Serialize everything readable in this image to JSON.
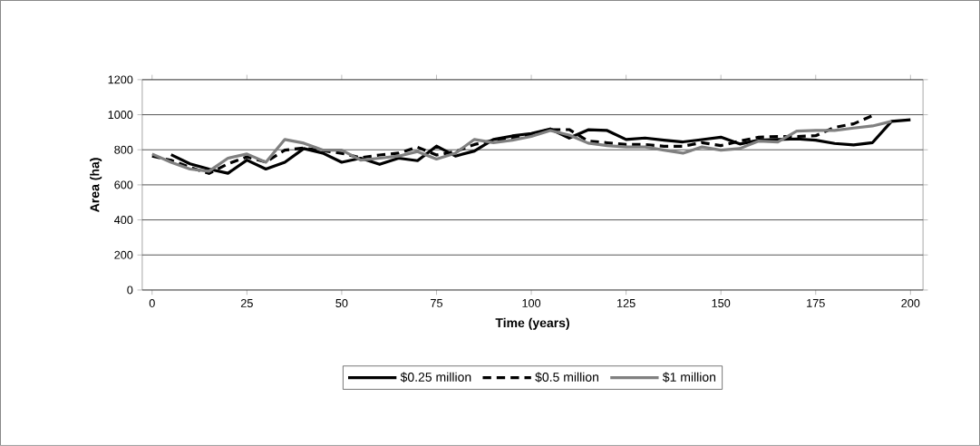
{
  "chart_data": {
    "type": "line",
    "xlabel": "Time (years)",
    "ylabel": "Area (ha)",
    "xlim": [
      -2.6,
      203.3
    ],
    "ylim": [
      0,
      1200
    ],
    "xticks": [
      0,
      25,
      50,
      75,
      100,
      125,
      150,
      175,
      200
    ],
    "yticks": [
      0,
      200,
      400,
      600,
      800,
      1000,
      1200
    ],
    "grid": "y",
    "legend": "bottom",
    "marker": "none",
    "series": [
      {
        "name": "$0.25 million",
        "color": "#000000",
        "line_style": "solid",
        "x": [
          5,
          10,
          15,
          20,
          25,
          30,
          35,
          40,
          45,
          50,
          55,
          60,
          65,
          70,
          75,
          80,
          85,
          90,
          95,
          100,
          105,
          110,
          115,
          120,
          125,
          130,
          135,
          140,
          145,
          150,
          155,
          160,
          165,
          170,
          175,
          180,
          185,
          190,
          195,
          200
        ],
        "values": [
          772,
          720,
          690,
          666,
          741,
          690,
          729,
          807,
          781,
          729,
          752,
          717,
          752,
          738,
          821,
          764,
          793,
          859,
          879,
          893,
          919,
          867,
          914,
          910,
          859,
          867,
          855,
          845,
          858,
          872,
          833,
          855,
          859,
          862,
          855,
          836,
          828,
          841,
          962,
          971
        ]
      },
      {
        "name": "$0.5 million",
        "color": "#000000",
        "line_style": "dashed",
        "x": [
          0,
          5,
          10,
          15,
          20,
          25,
          30,
          35,
          40,
          45,
          50,
          55,
          60,
          65,
          70,
          75,
          80,
          85,
          90,
          95,
          100,
          105,
          110,
          115,
          120,
          125,
          130,
          135,
          140,
          145,
          150,
          155,
          160,
          165,
          170,
          175,
          180,
          185,
          190
        ],
        "values": [
          764,
          740,
          700,
          665,
          720,
          760,
          730,
          798,
          810,
          795,
          780,
          755,
          770,
          781,
          815,
          770,
          790,
          830,
          855,
          865,
          890,
          915,
          915,
          850,
          840,
          830,
          830,
          820,
          820,
          841,
          824,
          850,
          872,
          876,
          876,
          880,
          928,
          948,
          995
        ]
      },
      {
        "name": "$1 million",
        "color": "#808080",
        "line_style": "solid",
        "x": [
          0,
          5,
          10,
          15,
          20,
          25,
          30,
          35,
          40,
          45,
          50,
          55,
          60,
          65,
          70,
          75,
          80,
          85,
          90,
          95,
          100,
          105,
          110,
          115,
          120,
          125,
          130,
          135,
          140,
          145,
          150,
          155,
          160,
          165,
          170,
          175,
          180,
          185,
          190,
          195
        ],
        "values": [
          776,
          729,
          690,
          678,
          752,
          776,
          729,
          859,
          838,
          798,
          798,
          741,
          752,
          764,
          790,
          747,
          781,
          859,
          841,
          855,
          876,
          910,
          884,
          838,
          824,
          816,
          816,
          798,
          781,
          816,
          798,
          807,
          850,
          845,
          907,
          910,
          910,
          924,
          936,
          962
        ]
      }
    ]
  }
}
